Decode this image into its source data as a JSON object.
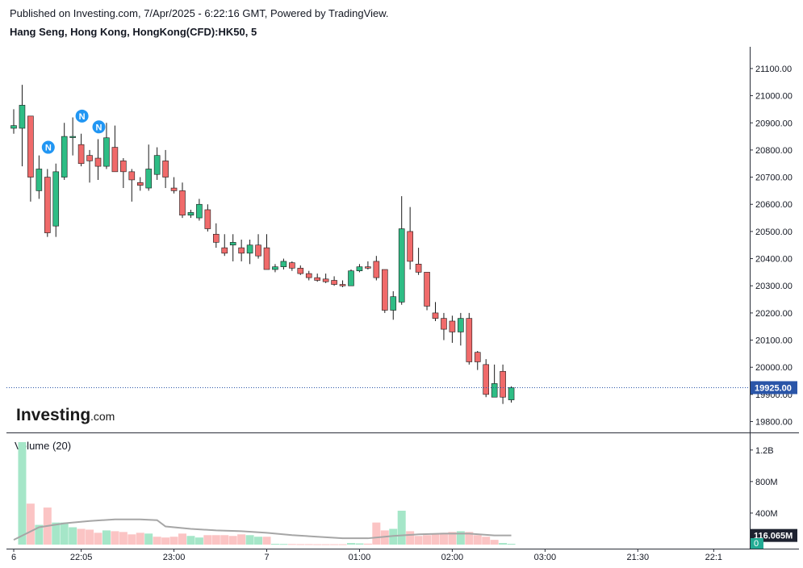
{
  "header": {
    "published": "Published on Investing.com, 7/Apr/2025 - 6:22:16 GMT, Powered by TradingView.",
    "symbol": "Hang Seng, Hong Kong, HongKong(CFD):HK50, 5"
  },
  "logo": {
    "main": "Investing",
    "suffix": ".com"
  },
  "colors": {
    "up": "#26a69a",
    "up_fill": "#2ebd85",
    "down": "#ef5350",
    "down_fill": "#f06a6a",
    "vol_up": "#a5e6c8",
    "vol_down": "#fbc4c4",
    "ma": "#a6a6a6",
    "price_line": "#2a55a8",
    "badge": "#2196f3"
  },
  "chart_data": [
    {
      "type": "candlestick",
      "title": "Hang Seng, Hong Kong, HongKong(CFD):HK50, 5",
      "ylim": [
        19760,
        21180
      ],
      "y_ticks": [
        "21100.00",
        "21000.00",
        "20900.00",
        "20800.00",
        "20700.00",
        "20600.00",
        "20500.00",
        "20400.00",
        "20300.00",
        "20200.00",
        "20100.00",
        "20000.00",
        "19900.00",
        "19800.00"
      ],
      "x_ticks": [
        {
          "label": "6",
          "index": 0
        },
        {
          "label": "22:05",
          "index": 8
        },
        {
          "label": "23:00",
          "index": 19
        },
        {
          "label": "7",
          "index": 30
        },
        {
          "label": "01:00",
          "index": 41
        },
        {
          "label": "02:00",
          "index": 52
        },
        {
          "label": "03:00",
          "index": 63
        },
        {
          "label": "21:30",
          "index": 74
        },
        {
          "label": "22:1",
          "index": 83
        }
      ],
      "last_price_label": "19925.00",
      "last_price": 19925,
      "candles": [
        {
          "o": 20880,
          "h": 20950,
          "l": 20860,
          "c": 20890
        },
        {
          "o": 20880,
          "h": 21040,
          "l": 20740,
          "c": 20965
        },
        {
          "o": 20925,
          "h": 20925,
          "l": 20610,
          "c": 20700
        },
        {
          "o": 20650,
          "h": 20780,
          "l": 20620,
          "c": 20730
        },
        {
          "o": 20700,
          "h": 20730,
          "l": 20480,
          "c": 20495
        },
        {
          "o": 20520,
          "h": 20750,
          "l": 20480,
          "c": 20720
        },
        {
          "o": 20700,
          "h": 20900,
          "l": 20690,
          "c": 20850
        },
        {
          "o": 20850,
          "h": 20920,
          "l": 20780,
          "c": 20850
        },
        {
          "o": 20820,
          "h": 20860,
          "l": 20740,
          "c": 20750
        },
        {
          "o": 20780,
          "h": 20800,
          "l": 20680,
          "c": 20760
        },
        {
          "o": 20770,
          "h": 20840,
          "l": 20690,
          "c": 20740
        },
        {
          "o": 20740,
          "h": 20900,
          "l": 20730,
          "c": 20845
        },
        {
          "o": 20810,
          "h": 20890,
          "l": 20720,
          "c": 20720
        },
        {
          "o": 20760,
          "h": 20770,
          "l": 20660,
          "c": 20720
        },
        {
          "o": 20720,
          "h": 20730,
          "l": 20610,
          "c": 20690
        },
        {
          "o": 20680,
          "h": 20700,
          "l": 20650,
          "c": 20670
        },
        {
          "o": 20660,
          "h": 20820,
          "l": 20650,
          "c": 20730
        },
        {
          "o": 20710,
          "h": 20810,
          "l": 20690,
          "c": 20780
        },
        {
          "o": 20760,
          "h": 20800,
          "l": 20660,
          "c": 20700
        },
        {
          "o": 20660,
          "h": 20700,
          "l": 20640,
          "c": 20650
        },
        {
          "o": 20650,
          "h": 20680,
          "l": 20550,
          "c": 20560
        },
        {
          "o": 20560,
          "h": 20580,
          "l": 20550,
          "c": 20570
        },
        {
          "o": 20550,
          "h": 20620,
          "l": 20540,
          "c": 20600
        },
        {
          "o": 20580,
          "h": 20600,
          "l": 20500,
          "c": 20510
        },
        {
          "o": 20490,
          "h": 20530,
          "l": 20440,
          "c": 20460
        },
        {
          "o": 20440,
          "h": 20490,
          "l": 20410,
          "c": 20420
        },
        {
          "o": 20450,
          "h": 20490,
          "l": 20390,
          "c": 20460
        },
        {
          "o": 20440,
          "h": 20470,
          "l": 20390,
          "c": 20420
        },
        {
          "o": 20420,
          "h": 20470,
          "l": 20380,
          "c": 20450
        },
        {
          "o": 20450,
          "h": 20490,
          "l": 20400,
          "c": 20410
        },
        {
          "o": 20440,
          "h": 20490,
          "l": 20360,
          "c": 20360
        },
        {
          "o": 20360,
          "h": 20380,
          "l": 20350,
          "c": 20370
        },
        {
          "o": 20370,
          "h": 20400,
          "l": 20360,
          "c": 20390
        },
        {
          "o": 20385,
          "h": 20390,
          "l": 20355,
          "c": 20365
        },
        {
          "o": 20365,
          "h": 20375,
          "l": 20340,
          "c": 20345
        },
        {
          "o": 20345,
          "h": 20355,
          "l": 20320,
          "c": 20330
        },
        {
          "o": 20330,
          "h": 20345,
          "l": 20315,
          "c": 20320
        },
        {
          "o": 20325,
          "h": 20345,
          "l": 20310,
          "c": 20315
        },
        {
          "o": 20320,
          "h": 20335,
          "l": 20300,
          "c": 20305
        },
        {
          "o": 20305,
          "h": 20320,
          "l": 20295,
          "c": 20300
        },
        {
          "o": 20300,
          "h": 20360,
          "l": 20300,
          "c": 20355
        },
        {
          "o": 20355,
          "h": 20380,
          "l": 20350,
          "c": 20370
        },
        {
          "o": 20370,
          "h": 20390,
          "l": 20360,
          "c": 20365
        },
        {
          "o": 20390,
          "h": 20410,
          "l": 20320,
          "c": 20330
        },
        {
          "o": 20360,
          "h": 20360,
          "l": 20200,
          "c": 20210
        },
        {
          "o": 20210,
          "h": 20280,
          "l": 20175,
          "c": 20260
        },
        {
          "o": 20240,
          "h": 20630,
          "l": 20230,
          "c": 20510
        },
        {
          "o": 20500,
          "h": 20590,
          "l": 20360,
          "c": 20390
        },
        {
          "o": 20380,
          "h": 20440,
          "l": 20340,
          "c": 20350
        },
        {
          "o": 20350,
          "h": 20350,
          "l": 20210,
          "c": 20225
        },
        {
          "o": 20200,
          "h": 20240,
          "l": 20170,
          "c": 20180
        },
        {
          "o": 20180,
          "h": 20200,
          "l": 20100,
          "c": 20140
        },
        {
          "o": 20170,
          "h": 20190,
          "l": 20090,
          "c": 20130
        },
        {
          "o": 20130,
          "h": 20200,
          "l": 20080,
          "c": 20180
        },
        {
          "o": 20180,
          "h": 20200,
          "l": 20010,
          "c": 20020
        },
        {
          "o": 20055,
          "h": 20060,
          "l": 19990,
          "c": 20020
        },
        {
          "o": 20010,
          "h": 20030,
          "l": 19890,
          "c": 19900
        },
        {
          "o": 19890,
          "h": 20010,
          "l": 19890,
          "c": 19940
        },
        {
          "o": 19985,
          "h": 20010,
          "l": 19865,
          "c": 19890
        },
        {
          "o": 19880,
          "h": 19930,
          "l": 19870,
          "c": 19925
        }
      ]
    },
    {
      "type": "bar",
      "title": "Volume (20)",
      "ylim": [
        0,
        1300000000
      ],
      "y_ticks": [
        "1.2B",
        "800M",
        "400M",
        "0"
      ],
      "y_tick_values": [
        1200000000,
        800000000,
        400000000,
        0
      ],
      "last_volume_label": "116.065M",
      "last_volume": 116065000,
      "zero_label": "0",
      "volumes": [
        {
          "v": 0,
          "up": true
        },
        {
          "v": 1300000000,
          "up": true
        },
        {
          "v": 520000000,
          "up": false
        },
        {
          "v": 250000000,
          "up": true
        },
        {
          "v": 470000000,
          "up": false
        },
        {
          "v": 280000000,
          "up": true
        },
        {
          "v": 280000000,
          "up": true
        },
        {
          "v": 220000000,
          "up": true
        },
        {
          "v": 200000000,
          "up": false
        },
        {
          "v": 190000000,
          "up": false
        },
        {
          "v": 150000000,
          "up": false
        },
        {
          "v": 180000000,
          "up": true
        },
        {
          "v": 170000000,
          "up": false
        },
        {
          "v": 160000000,
          "up": false
        },
        {
          "v": 130000000,
          "up": false
        },
        {
          "v": 150000000,
          "up": false
        },
        {
          "v": 140000000,
          "up": true
        },
        {
          "v": 100000000,
          "up": false
        },
        {
          "v": 90000000,
          "up": false
        },
        {
          "v": 100000000,
          "up": false
        },
        {
          "v": 140000000,
          "up": false
        },
        {
          "v": 110000000,
          "up": true
        },
        {
          "v": 90000000,
          "up": true
        },
        {
          "v": 120000000,
          "up": false
        },
        {
          "v": 120000000,
          "up": false
        },
        {
          "v": 120000000,
          "up": false
        },
        {
          "v": 110000000,
          "up": false
        },
        {
          "v": 130000000,
          "up": false
        },
        {
          "v": 120000000,
          "up": true
        },
        {
          "v": 100000000,
          "up": true
        },
        {
          "v": 100000000,
          "up": false
        },
        {
          "v": 10000000,
          "up": true
        },
        {
          "v": 8000000,
          "up": true
        },
        {
          "v": 7000000,
          "up": false
        },
        {
          "v": 6000000,
          "up": false
        },
        {
          "v": 6000000,
          "up": false
        },
        {
          "v": 5000000,
          "up": false
        },
        {
          "v": 5000000,
          "up": false
        },
        {
          "v": 5000000,
          "up": false
        },
        {
          "v": 5000000,
          "up": false
        },
        {
          "v": 20000000,
          "up": true
        },
        {
          "v": 15000000,
          "up": true
        },
        {
          "v": 12000000,
          "up": false
        },
        {
          "v": 280000000,
          "up": false
        },
        {
          "v": 180000000,
          "up": false
        },
        {
          "v": 200000000,
          "up": true
        },
        {
          "v": 430000000,
          "up": true
        },
        {
          "v": 170000000,
          "up": false
        },
        {
          "v": 110000000,
          "up": false
        },
        {
          "v": 120000000,
          "up": false
        },
        {
          "v": 140000000,
          "up": false
        },
        {
          "v": 150000000,
          "up": false
        },
        {
          "v": 160000000,
          "up": false
        },
        {
          "v": 170000000,
          "up": true
        },
        {
          "v": 160000000,
          "up": false
        },
        {
          "v": 120000000,
          "up": false
        },
        {
          "v": 100000000,
          "up": false
        },
        {
          "v": 60000000,
          "up": false
        },
        {
          "v": 20000000,
          "up": true
        },
        {
          "v": 10000000,
          "up": true
        }
      ],
      "ma20": [
        {
          "i": 0,
          "v": 60000000
        },
        {
          "i": 3,
          "v": 220000000
        },
        {
          "i": 6,
          "v": 270000000
        },
        {
          "i": 9,
          "v": 300000000
        },
        {
          "i": 12,
          "v": 320000000
        },
        {
          "i": 15,
          "v": 320000000
        },
        {
          "i": 17,
          "v": 310000000
        },
        {
          "i": 18,
          "v": 230000000
        },
        {
          "i": 21,
          "v": 200000000
        },
        {
          "i": 24,
          "v": 180000000
        },
        {
          "i": 27,
          "v": 170000000
        },
        {
          "i": 30,
          "v": 150000000
        },
        {
          "i": 33,
          "v": 120000000
        },
        {
          "i": 36,
          "v": 100000000
        },
        {
          "i": 39,
          "v": 80000000
        },
        {
          "i": 42,
          "v": 80000000
        },
        {
          "i": 45,
          "v": 110000000
        },
        {
          "i": 48,
          "v": 130000000
        },
        {
          "i": 51,
          "v": 140000000
        },
        {
          "i": 54,
          "v": 140000000
        },
        {
          "i": 57,
          "v": 116000000
        },
        {
          "i": 59,
          "v": 116065000
        }
      ]
    }
  ]
}
